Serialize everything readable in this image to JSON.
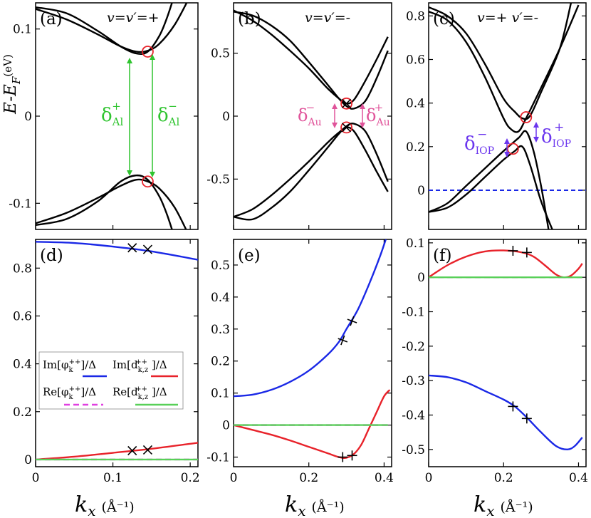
{
  "figure": {
    "xlabel_var": "k",
    "xlabel_sub": "x",
    "xlabel_unit": "(Å⁻¹)",
    "ylabel_top": "E-E",
    "ylabel_sub": "F",
    "ylabel_unit": "(eV)"
  },
  "colors": {
    "band": "#000000",
    "circle": "#e8222a",
    "arrow_al": "#2fc42f",
    "arrow_au": "#e0549a",
    "arrow_iop": "#6a35ee",
    "im_phi": "#1a28e6",
    "im_d": "#e8222a",
    "re_phi": "#e040e0",
    "re_d": "#58d058",
    "fermi": "#1a28e6"
  },
  "annotations": {
    "a_delta_plus": "δ",
    "a_delta_plus_sub": "Al",
    "a_delta_plus_sup": "+",
    "a_delta_minus": "δ",
    "a_delta_minus_sub": "Al",
    "a_delta_minus_sup": "−",
    "b_delta_minus": "δ",
    "b_delta_minus_sub": "Au",
    "b_delta_minus_sup": "−",
    "b_delta_plus": "δ",
    "b_delta_plus_sub": "Au",
    "b_delta_plus_sup": "+",
    "c_delta_minus": "δ",
    "c_delta_minus_sub": "IOP",
    "c_delta_minus_sup": "−",
    "c_delta_plus": "δ",
    "c_delta_plus_sub": "IOP",
    "c_delta_plus_sup": "+"
  },
  "legend": {
    "im_phi": "Im[φ",
    "im_phi_sub": "k",
    "im_phi_sup": "++",
    "im_phi_tail": "]/Δ",
    "im_d": "Im[d",
    "im_d_sub": "k,z",
    "im_d_sup": "++",
    "im_d_tail": "]/Δ",
    "re_phi": "Re[φ",
    "re_phi_sub": "k",
    "re_phi_sup": "++",
    "re_phi_tail": "]/Δ",
    "re_d": "Re[d",
    "re_d_sub": "k,z",
    "re_d_sup": "++",
    "re_d_tail": "]/Δ"
  },
  "chart_data": [
    {
      "id": "a",
      "label": "(a)",
      "title": "v=v′=+",
      "type": "line",
      "xlim": [
        0,
        0.21
      ],
      "ylim": [
        -0.13,
        0.13
      ],
      "xticks": [],
      "yticks": [
        0.1,
        0,
        -0.1
      ],
      "ytick_labels": [
        "0.1",
        "0",
        "-0.1"
      ],
      "series": [
        {
          "name": "upper-1",
          "x": [
            0,
            0.04,
            0.08,
            0.11,
            0.13,
            0.145,
            0.16,
            0.18,
            0.2
          ],
          "y": [
            0.123,
            0.111,
            0.094,
            0.08,
            0.074,
            0.075,
            0.083,
            0.105,
            0.138
          ]
        },
        {
          "name": "upper-2",
          "x": [
            0,
            0.04,
            0.08,
            0.11,
            0.13,
            0.145,
            0.16,
            0.17,
            0.18
          ],
          "y": [
            0.125,
            0.118,
            0.098,
            0.08,
            0.072,
            0.074,
            0.092,
            0.113,
            0.14
          ]
        },
        {
          "name": "lower-1",
          "x": [
            0,
            0.04,
            0.08,
            0.11,
            0.13,
            0.145,
            0.16,
            0.18,
            0.2
          ],
          "y": [
            -0.123,
            -0.111,
            -0.094,
            -0.08,
            -0.073,
            -0.075,
            -0.083,
            -0.105,
            -0.14
          ]
        },
        {
          "name": "lower-2",
          "x": [
            0,
            0.04,
            0.08,
            0.11,
            0.13,
            0.145,
            0.16,
            0.17,
            0.18
          ],
          "y": [
            -0.125,
            -0.118,
            -0.098,
            -0.075,
            -0.068,
            -0.073,
            -0.092,
            -0.113,
            -0.14
          ]
        }
      ],
      "circles": [
        {
          "x": 0.145,
          "y": 0.074
        },
        {
          "x": 0.145,
          "y": -0.075
        }
      ],
      "crosses": []
    },
    {
      "id": "b",
      "label": "(b)",
      "title": "v=v′=-",
      "type": "line",
      "xlim": [
        0,
        0.42
      ],
      "ylim": [
        -0.9,
        0.9
      ],
      "xticks": [],
      "yticks": [
        0.5,
        0,
        -0.5
      ],
      "ytick_labels": [
        "0.5",
        "0",
        "-0.5"
      ],
      "series": [
        {
          "name": "upper-1",
          "x": [
            0,
            0.05,
            0.1,
            0.15,
            0.2,
            0.25,
            0.28,
            0.3,
            0.32,
            0.35,
            0.38,
            0.41
          ],
          "y": [
            0.83,
            0.8,
            0.72,
            0.6,
            0.43,
            0.25,
            0.14,
            0.08,
            0.06,
            0.12,
            0.3,
            0.52
          ]
        },
        {
          "name": "upper-2",
          "x": [
            0,
            0.05,
            0.1,
            0.15,
            0.2,
            0.25,
            0.28,
            0.3,
            0.32,
            0.35,
            0.38,
            0.41
          ],
          "y": [
            0.84,
            0.76,
            0.65,
            0.52,
            0.38,
            0.22,
            0.14,
            0.1,
            0.13,
            0.28,
            0.45,
            0.63
          ]
        },
        {
          "name": "lower-1",
          "x": [
            0,
            0.05,
            0.1,
            0.15,
            0.2,
            0.25,
            0.28,
            0.3,
            0.32,
            0.35,
            0.38,
            0.41
          ],
          "y": [
            -0.8,
            -0.82,
            -0.73,
            -0.6,
            -0.43,
            -0.25,
            -0.14,
            -0.08,
            -0.06,
            -0.12,
            -0.3,
            -0.52
          ]
        },
        {
          "name": "lower-2",
          "x": [
            0,
            0.05,
            0.1,
            0.15,
            0.2,
            0.25,
            0.28,
            0.3,
            0.32,
            0.35,
            0.38,
            0.41
          ],
          "y": [
            -0.8,
            -0.74,
            -0.63,
            -0.5,
            -0.36,
            -0.21,
            -0.13,
            -0.09,
            -0.12,
            -0.27,
            -0.44,
            -0.6
          ]
        }
      ],
      "circles": [
        {
          "x": 0.3,
          "y": 0.1
        },
        {
          "x": 0.3,
          "y": -0.09
        }
      ],
      "crosses": [
        {
          "x": 0.3,
          "y": 0.1
        },
        {
          "x": 0.3,
          "y": -0.09
        }
      ]
    },
    {
      "id": "c",
      "label": "(c)",
      "title": "v=+ v′=-",
      "type": "line",
      "xlim": [
        0,
        0.42
      ],
      "ylim": [
        -0.18,
        0.86
      ],
      "xticks": [],
      "yticks": [
        0.8,
        0.6,
        0.4,
        0.2,
        0
      ],
      "ytick_labels": [
        "0.8",
        "0.6",
        "0.4",
        "0.2",
        "0"
      ],
      "fermi": 0,
      "series": [
        {
          "name": "upper-1",
          "x": [
            0,
            0.05,
            0.1,
            0.15,
            0.2,
            0.22,
            0.24,
            0.26,
            0.3,
            0.35,
            0.4
          ],
          "y": [
            0.82,
            0.78,
            0.68,
            0.52,
            0.33,
            0.28,
            0.27,
            0.33,
            0.47,
            0.65,
            0.85
          ]
        },
        {
          "name": "upper-2",
          "x": [
            0,
            0.05,
            0.1,
            0.15,
            0.2,
            0.23,
            0.25,
            0.27,
            0.3,
            0.35,
            0.38
          ],
          "y": [
            0.84,
            0.8,
            0.72,
            0.58,
            0.42,
            0.36,
            0.33,
            0.34,
            0.45,
            0.65,
            0.86
          ]
        },
        {
          "name": "lower-1",
          "x": [
            0,
            0.05,
            0.1,
            0.15,
            0.2,
            0.23,
            0.25,
            0.27,
            0.3,
            0.33
          ],
          "y": [
            -0.1,
            -0.08,
            -0.02,
            0.06,
            0.14,
            0.18,
            0.2,
            0.12,
            -0.05,
            -0.18
          ]
        },
        {
          "name": "lower-2",
          "x": [
            0,
            0.05,
            0.1,
            0.15,
            0.2,
            0.24,
            0.26,
            0.28,
            0.3,
            0.32
          ],
          "y": [
            -0.1,
            -0.06,
            0.02,
            0.1,
            0.18,
            0.24,
            0.27,
            0.18,
            0.02,
            -0.18
          ]
        }
      ],
      "circles": [
        {
          "x": 0.26,
          "y": 0.335
        },
        {
          "x": 0.225,
          "y": 0.19
        }
      ],
      "crosses": []
    },
    {
      "id": "d",
      "label": "(d)",
      "type": "line",
      "xlim": [
        0,
        0.21
      ],
      "ylim": [
        -0.03,
        0.92
      ],
      "xticks": [
        0,
        0.1,
        0.2
      ],
      "xtick_labels": [
        "0",
        "0.1",
        "0.2"
      ],
      "yticks": [
        0,
        0.2,
        0.4,
        0.6,
        0.8
      ],
      "ytick_labels": [
        "0",
        "0.2",
        "0.4",
        "0.6",
        "0.8"
      ],
      "series": [
        {
          "name": "Im[phi]/Delta",
          "color": "im_phi",
          "x": [
            0,
            0.05,
            0.1,
            0.15,
            0.21
          ],
          "y": [
            0.91,
            0.905,
            0.89,
            0.87,
            0.835
          ]
        },
        {
          "name": "Im[d]/Delta",
          "color": "im_d",
          "x": [
            0,
            0.05,
            0.1,
            0.15,
            0.21
          ],
          "y": [
            0.0,
            0.012,
            0.028,
            0.045,
            0.07
          ]
        },
        {
          "name": "Re[phi]/Delta",
          "color": "re_phi",
          "dash": true,
          "x": [
            0,
            0.21
          ],
          "y": [
            0,
            0
          ]
        },
        {
          "name": "Re[d]/Delta",
          "color": "re_d",
          "x": [
            0,
            0.21
          ],
          "y": [
            0,
            0
          ]
        }
      ],
      "crosses": [
        {
          "x": 0.125,
          "y": 0.885
        },
        {
          "x": 0.145,
          "y": 0.878
        },
        {
          "x": 0.125,
          "y": 0.037
        },
        {
          "x": 0.145,
          "y": 0.04
        }
      ],
      "circles": []
    },
    {
      "id": "e",
      "label": "(e)",
      "type": "line",
      "xlim": [
        0,
        0.42
      ],
      "ylim": [
        -0.13,
        0.58
      ],
      "xticks": [
        0,
        0.2,
        0.4
      ],
      "xtick_labels": [
        "0",
        "0.2",
        "0.4"
      ],
      "yticks": [
        -0.1,
        0,
        0.1,
        0.2,
        0.3,
        0.4,
        0.5
      ],
      "ytick_labels": [
        "-0.1",
        "0",
        "0.1",
        "0.2",
        "0.3",
        "0.4",
        "0.5"
      ],
      "series": [
        {
          "name": "Im[phi]/Delta",
          "color": "im_phi",
          "x": [
            0,
            0.05,
            0.1,
            0.15,
            0.2,
            0.25,
            0.28,
            0.3,
            0.33,
            0.36,
            0.39,
            0.41
          ],
          "y": [
            0.09,
            0.095,
            0.11,
            0.135,
            0.17,
            0.22,
            0.26,
            0.3,
            0.36,
            0.44,
            0.53,
            0.6
          ]
        },
        {
          "name": "Im[d]/Delta",
          "color": "im_d",
          "x": [
            0,
            0.05,
            0.1,
            0.15,
            0.2,
            0.25,
            0.28,
            0.3,
            0.32,
            0.34,
            0.36,
            0.38,
            0.4,
            0.415
          ],
          "y": [
            0.0,
            -0.015,
            -0.03,
            -0.048,
            -0.068,
            -0.088,
            -0.1,
            -0.102,
            -0.09,
            -0.06,
            -0.01,
            0.04,
            0.09,
            0.11
          ]
        },
        {
          "name": "Re[phi]/Delta",
          "color": "re_phi",
          "dash": true,
          "x": [
            0,
            0.41
          ],
          "y": [
            0,
            0
          ]
        },
        {
          "name": "Re[d]/Delta",
          "color": "re_d",
          "x": [
            0,
            0.41
          ],
          "y": [
            0,
            0
          ]
        }
      ],
      "crosses": [
        {
          "x": 0.29,
          "y": 0.265
        },
        {
          "x": 0.315,
          "y": 0.325
        },
        {
          "x": 0.29,
          "y": -0.1
        },
        {
          "x": 0.315,
          "y": -0.095
        }
      ],
      "circles": []
    },
    {
      "id": "f",
      "label": "(f)",
      "type": "line",
      "xlim": [
        0,
        0.42
      ],
      "ylim": [
        -0.55,
        0.11
      ],
      "xticks": [
        0,
        0.2,
        0.4
      ],
      "xtick_labels": [
        "0",
        "0.2",
        "0.4"
      ],
      "yticks": [
        0.1,
        0,
        -0.1,
        -0.2,
        -0.3,
        -0.4,
        -0.5
      ],
      "ytick_labels": [
        "0.1",
        "0",
        "-0.1",
        "-0.2",
        "-0.3",
        "-0.4",
        "-0.5"
      ],
      "series": [
        {
          "name": "Im[phi]/Delta",
          "color": "im_phi",
          "x": [
            0,
            0.05,
            0.1,
            0.15,
            0.2,
            0.23,
            0.26,
            0.3,
            0.34,
            0.37,
            0.39,
            0.41
          ],
          "y": [
            -0.285,
            -0.29,
            -0.305,
            -0.33,
            -0.355,
            -0.375,
            -0.405,
            -0.45,
            -0.49,
            -0.5,
            -0.49,
            -0.465
          ]
        },
        {
          "name": "Im[d]/Delta",
          "color": "im_d",
          "x": [
            0,
            0.05,
            0.1,
            0.15,
            0.2,
            0.25,
            0.28,
            0.31,
            0.34,
            0.36,
            0.38,
            0.4,
            0.41
          ],
          "y": [
            0.0,
            0.035,
            0.06,
            0.075,
            0.078,
            0.072,
            0.06,
            0.035,
            0.008,
            0.0,
            0.005,
            0.025,
            0.04
          ]
        },
        {
          "name": "Re[phi]/Delta",
          "color": "re_phi",
          "dash": true,
          "x": [
            0,
            0.41
          ],
          "y": [
            0,
            0
          ]
        },
        {
          "name": "Re[d]/Delta",
          "color": "re_d",
          "x": [
            0,
            0.41
          ],
          "y": [
            0,
            0
          ]
        }
      ],
      "crosses": [
        {
          "x": 0.225,
          "y": 0.077
        },
        {
          "x": 0.262,
          "y": 0.072
        },
        {
          "x": 0.225,
          "y": -0.375
        },
        {
          "x": 0.262,
          "y": -0.41
        }
      ],
      "circles": []
    }
  ]
}
